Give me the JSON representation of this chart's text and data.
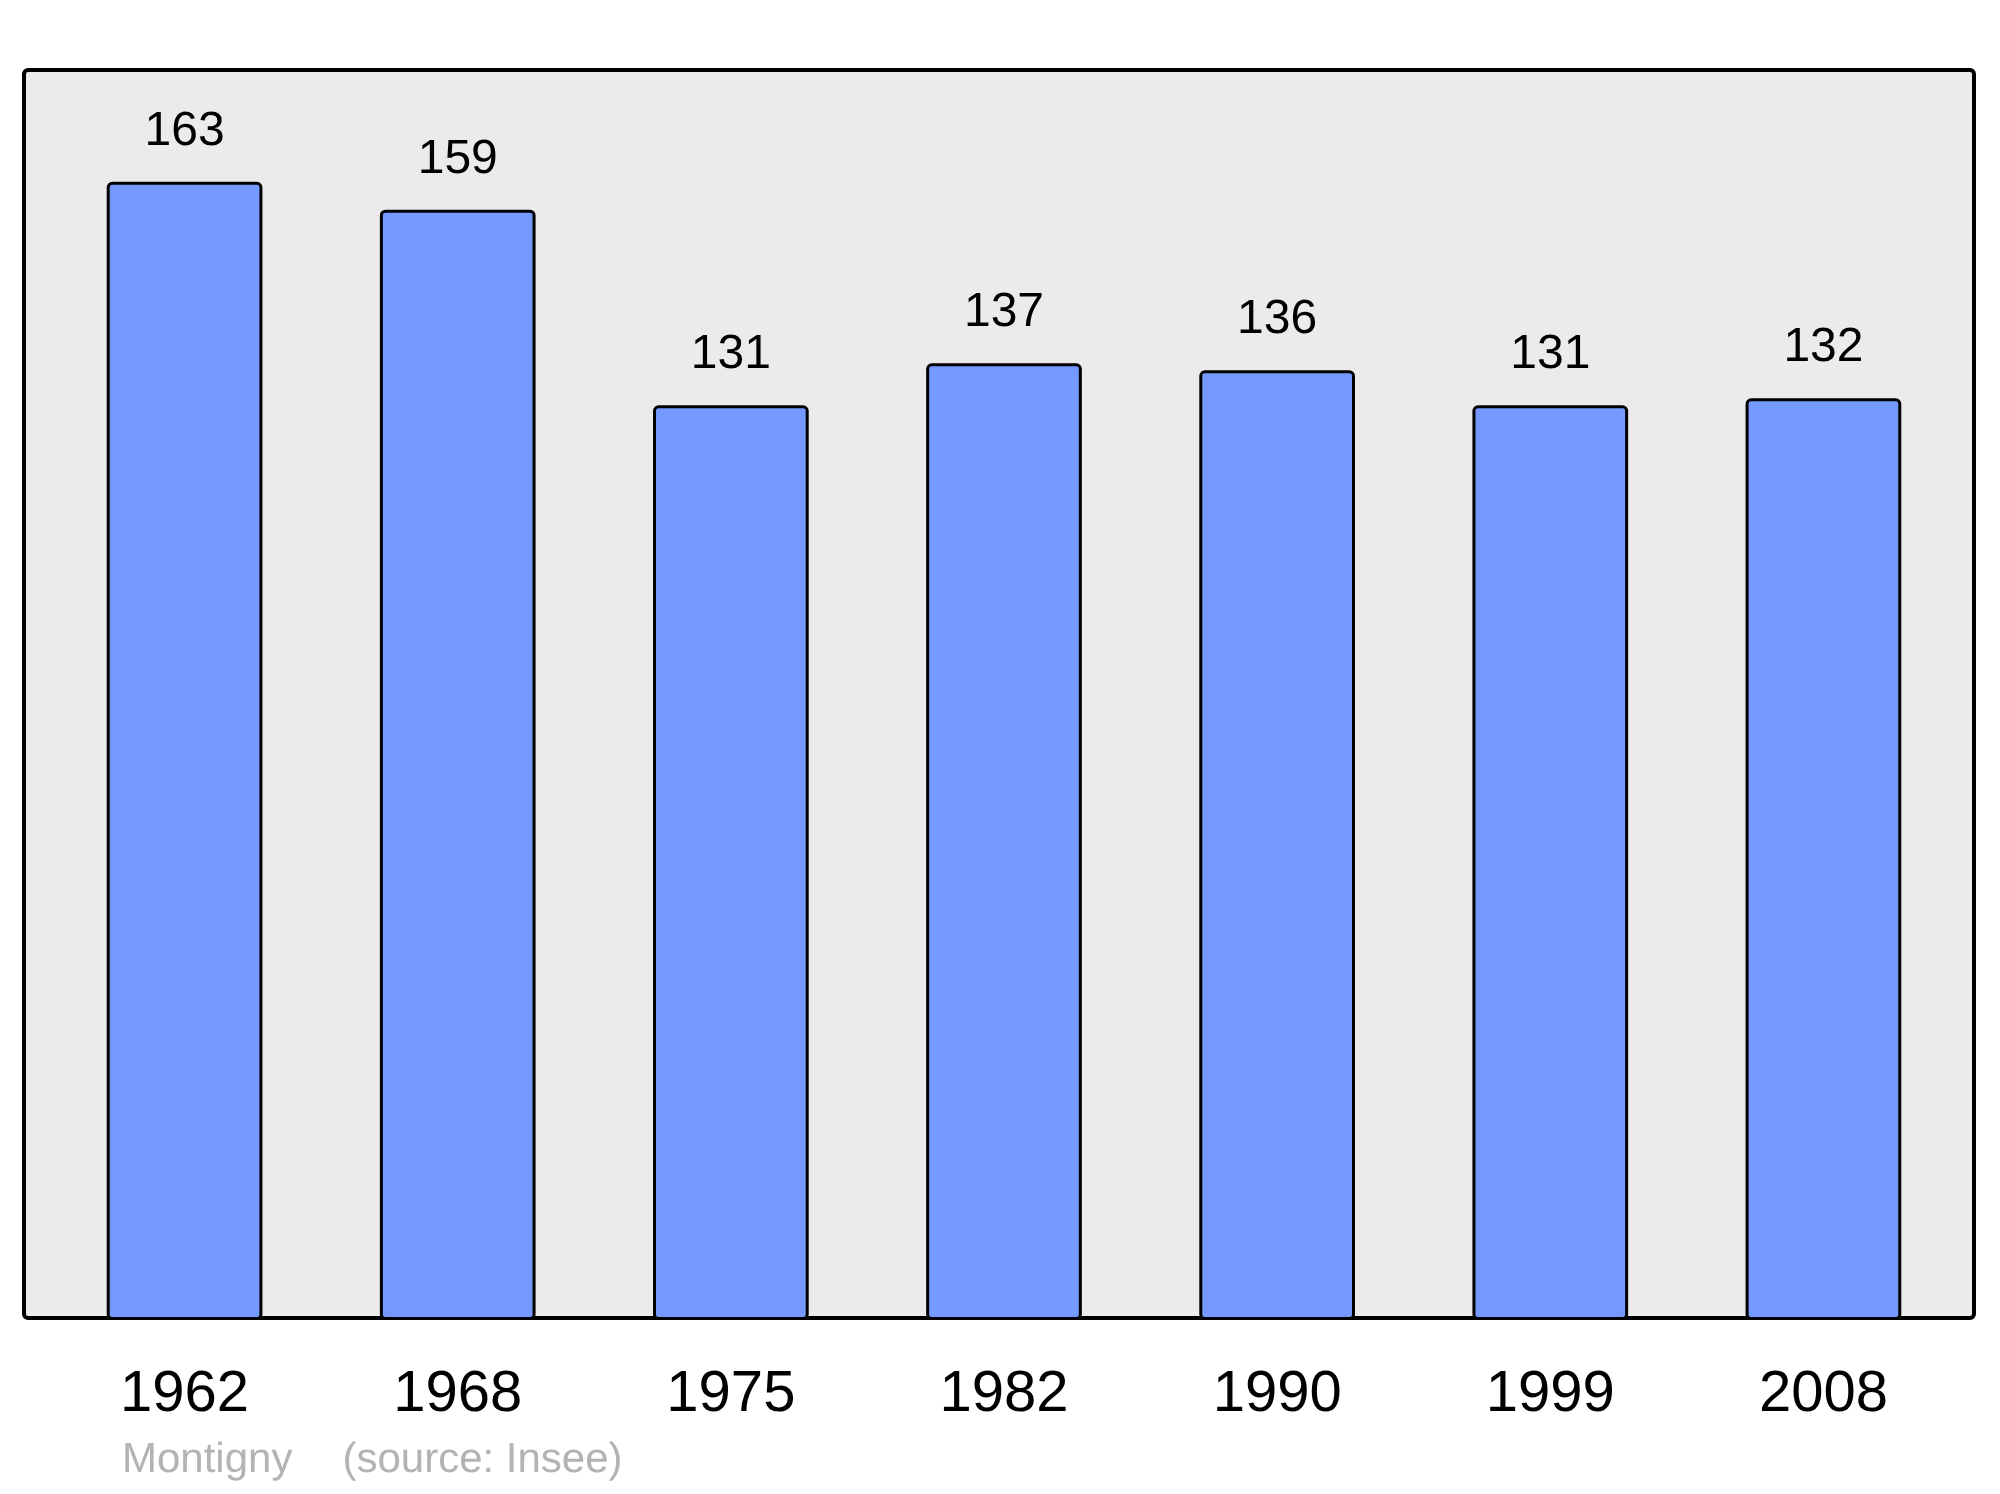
{
  "chart_data": {
    "type": "bar",
    "categories": [
      "1962",
      "1968",
      "1975",
      "1982",
      "1990",
      "1999",
      "2008"
    ],
    "values": [
      163,
      159,
      131,
      137,
      136,
      131,
      132
    ],
    "color": "#7499ff",
    "data_labels": true,
    "grid": false,
    "tick_labels": "x",
    "annotations": [
      "Montigny",
      "(source: Insee)"
    ]
  }
}
